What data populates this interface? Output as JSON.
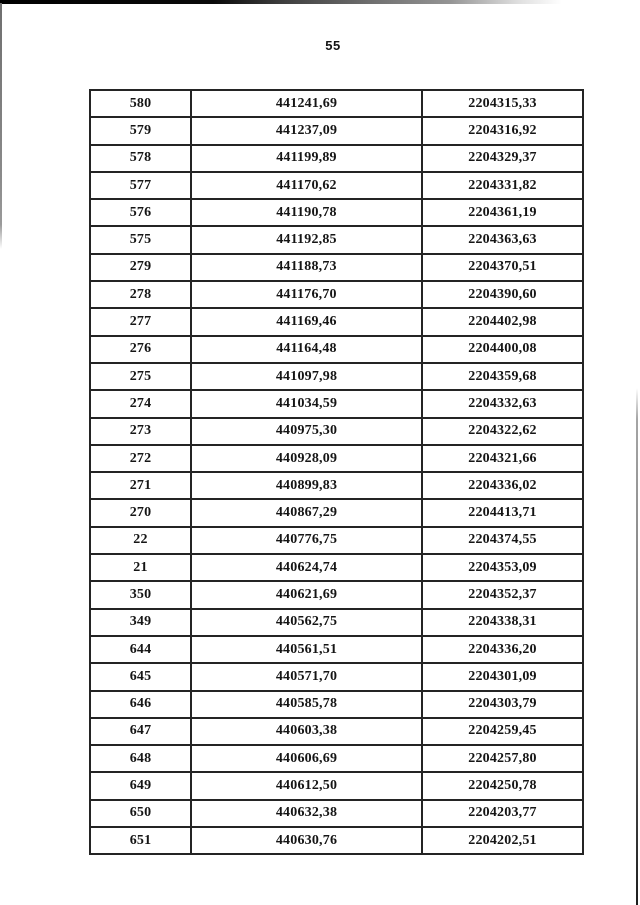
{
  "page_number": "55",
  "colors": {
    "paper": "#ffffff",
    "ink": "#151515",
    "table_border": "#242424",
    "scan_edge_dark": "#000000",
    "scan_edge_gray": "#8a8a8a"
  },
  "table": {
    "rows": [
      [
        "580",
        "441241,69",
        "2204315,33"
      ],
      [
        "579",
        "441237,09",
        "2204316,92"
      ],
      [
        "578",
        "441199,89",
        "2204329,37"
      ],
      [
        "577",
        "441170,62",
        "2204331,82"
      ],
      [
        "576",
        "441190,78",
        "2204361,19"
      ],
      [
        "575",
        "441192,85",
        "2204363,63"
      ],
      [
        "279",
        "441188,73",
        "2204370,51"
      ],
      [
        "278",
        "441176,70",
        "2204390,60"
      ],
      [
        "277",
        "441169,46",
        "2204402,98"
      ],
      [
        "276",
        "441164,48",
        "2204400,08"
      ],
      [
        "275",
        "441097,98",
        "2204359,68"
      ],
      [
        "274",
        "441034,59",
        "2204332,63"
      ],
      [
        "273",
        "440975,30",
        "2204322,62"
      ],
      [
        "272",
        "440928,09",
        "2204321,66"
      ],
      [
        "271",
        "440899,83",
        "2204336,02"
      ],
      [
        "270",
        "440867,29",
        "2204413,71"
      ],
      [
        "22",
        "440776,75",
        "2204374,55"
      ],
      [
        "21",
        "440624,74",
        "2204353,09"
      ],
      [
        "350",
        "440621,69",
        "2204352,37"
      ],
      [
        "349",
        "440562,75",
        "2204338,31"
      ],
      [
        "644",
        "440561,51",
        "2204336,20"
      ],
      [
        "645",
        "440571,70",
        "2204301,09"
      ],
      [
        "646",
        "440585,78",
        "2204303,79"
      ],
      [
        "647",
        "440603,38",
        "2204259,45"
      ],
      [
        "648",
        "440606,69",
        "2204257,80"
      ],
      [
        "649",
        "440612,50",
        "2204250,78"
      ],
      [
        "650",
        "440632,38",
        "2204203,77"
      ],
      [
        "651",
        "440630,76",
        "2204202,51"
      ]
    ]
  }
}
